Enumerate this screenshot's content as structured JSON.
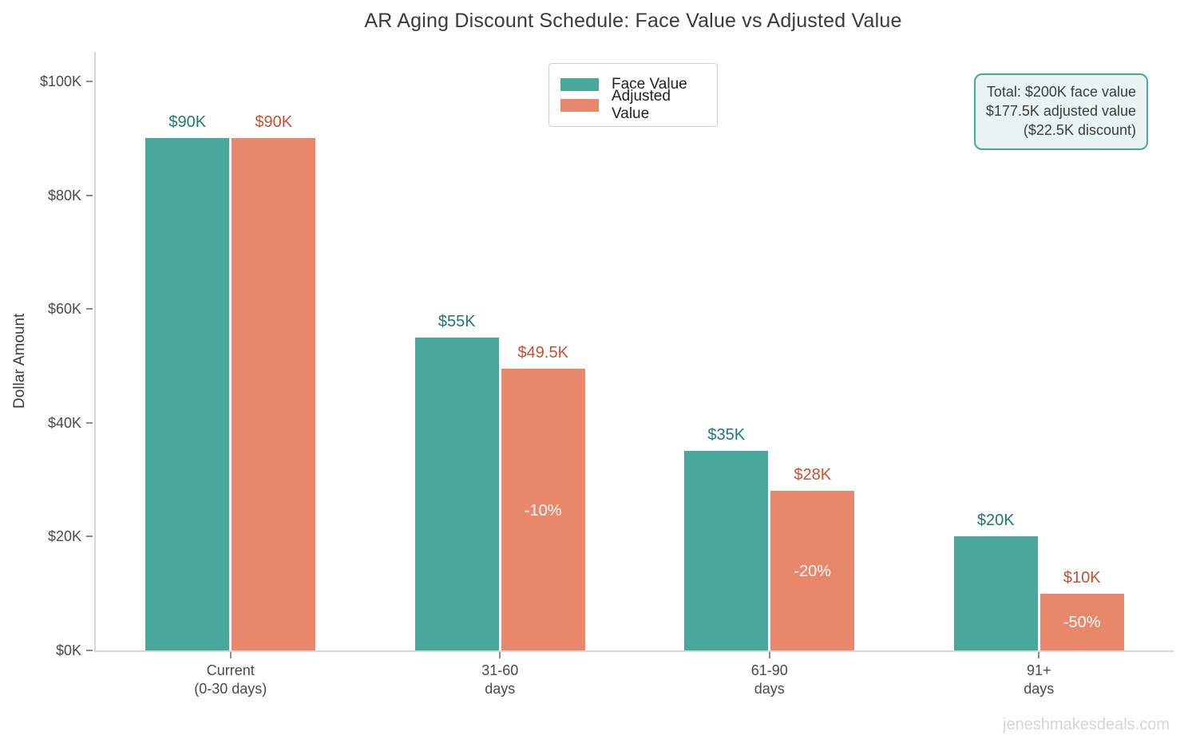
{
  "title": "AR Aging Discount Schedule: Face Value vs Adjusted Value",
  "legend": {
    "items": [
      {
        "label": "Face Value",
        "color": "#47a89b"
      },
      {
        "label": "Adjusted Value",
        "color": "#e9876b"
      }
    ]
  },
  "annotation": {
    "lines": [
      "Total: $200K face value",
      "$177.5K adjusted value",
      "($22.5K discount)"
    ],
    "border_color": "#47a89b",
    "background": "#e9f4f2"
  },
  "watermark": "jeneshmakesdeals.com",
  "chart_data": {
    "type": "bar",
    "title": "AR Aging Discount Schedule: Face Value vs Adjusted Value",
    "xlabel": "",
    "ylabel": "Dollar Amount",
    "categories": [
      "Current (0-30 days)",
      "31-60 days",
      "61-90 days",
      "91+ days"
    ],
    "category_lines": [
      [
        "Current",
        "(0-30 days)"
      ],
      [
        "31-60",
        "days"
      ],
      [
        "61-90",
        "days"
      ],
      [
        "91+",
        "days"
      ]
    ],
    "series": [
      {
        "name": "Face Value",
        "color": "#47a89b",
        "label_color": "#1e7a6d",
        "values": [
          90,
          55,
          35,
          20
        ],
        "value_labels": [
          "$90K",
          "$55K",
          "$35K",
          "$20K"
        ]
      },
      {
        "name": "Adjusted Value",
        "color": "#e9876b",
        "label_color": "#c75233",
        "values": [
          90,
          49.5,
          28,
          10
        ],
        "value_labels": [
          "$90K",
          "$49.5K",
          "$28K",
          "$10K"
        ],
        "discount_labels": [
          null,
          "-10%",
          "-20%",
          "-50%"
        ]
      }
    ],
    "units": "thousands of dollars",
    "yticks": [
      {
        "value": 0,
        "label": "$0K"
      },
      {
        "value": 20,
        "label": "$20K"
      },
      {
        "value": 40,
        "label": "$40K"
      },
      {
        "value": 60,
        "label": "$60K"
      },
      {
        "value": 80,
        "label": "$80K"
      },
      {
        "value": 100,
        "label": "$100K"
      }
    ],
    "ylim": [
      0,
      105
    ],
    "grid": false,
    "legend_position": "top-center"
  }
}
